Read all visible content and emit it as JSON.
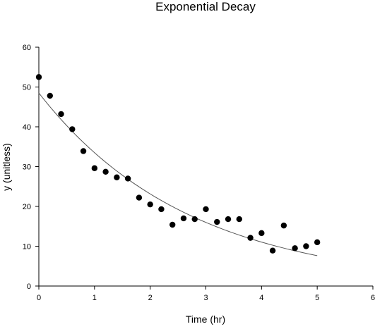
{
  "chart_data": {
    "type": "scatter",
    "title": "Exponential Decay",
    "xlabel": "Time (hr)",
    "ylabel": "y (unitless)",
    "xlim": [
      0,
      6
    ],
    "ylim": [
      0,
      60
    ],
    "xticks": [
      0,
      1,
      2,
      3,
      4,
      5,
      6
    ],
    "yticks": [
      0,
      10,
      20,
      30,
      40,
      50,
      60
    ],
    "xtick_labels": [
      "0",
      "1",
      "2",
      "3",
      "4",
      "5",
      "6"
    ],
    "ytick_labels": [
      "0",
      "10",
      "20",
      "30",
      "40",
      "50",
      "60"
    ],
    "grid": false,
    "legend": "none",
    "series": [
      {
        "kind": "points",
        "color": "#000000",
        "x": [
          0,
          0.2,
          0.4,
          0.6,
          0.8,
          1.0,
          1.2,
          1.4,
          1.6,
          1.8,
          2.0,
          2.2,
          2.4,
          2.6,
          2.8,
          3.0,
          3.2,
          3.4,
          3.6,
          3.8,
          4.0,
          4.2,
          4.4,
          4.6,
          4.8,
          5.0
        ],
        "y": [
          52.5,
          47.8,
          43.2,
          39.4,
          33.9,
          29.6,
          28.7,
          27.3,
          27.0,
          22.2,
          20.5,
          19.3,
          15.4,
          17.0,
          16.8,
          19.3,
          16.1,
          16.8,
          16.8,
          12.1,
          13.3,
          8.9,
          15.2,
          9.5,
          10.0,
          11.0
        ]
      },
      {
        "kind": "curve",
        "color": "#555555",
        "model": "exponential",
        "amplitude": 48.5,
        "rate": 0.37,
        "x_range": [
          0,
          5
        ]
      }
    ]
  }
}
